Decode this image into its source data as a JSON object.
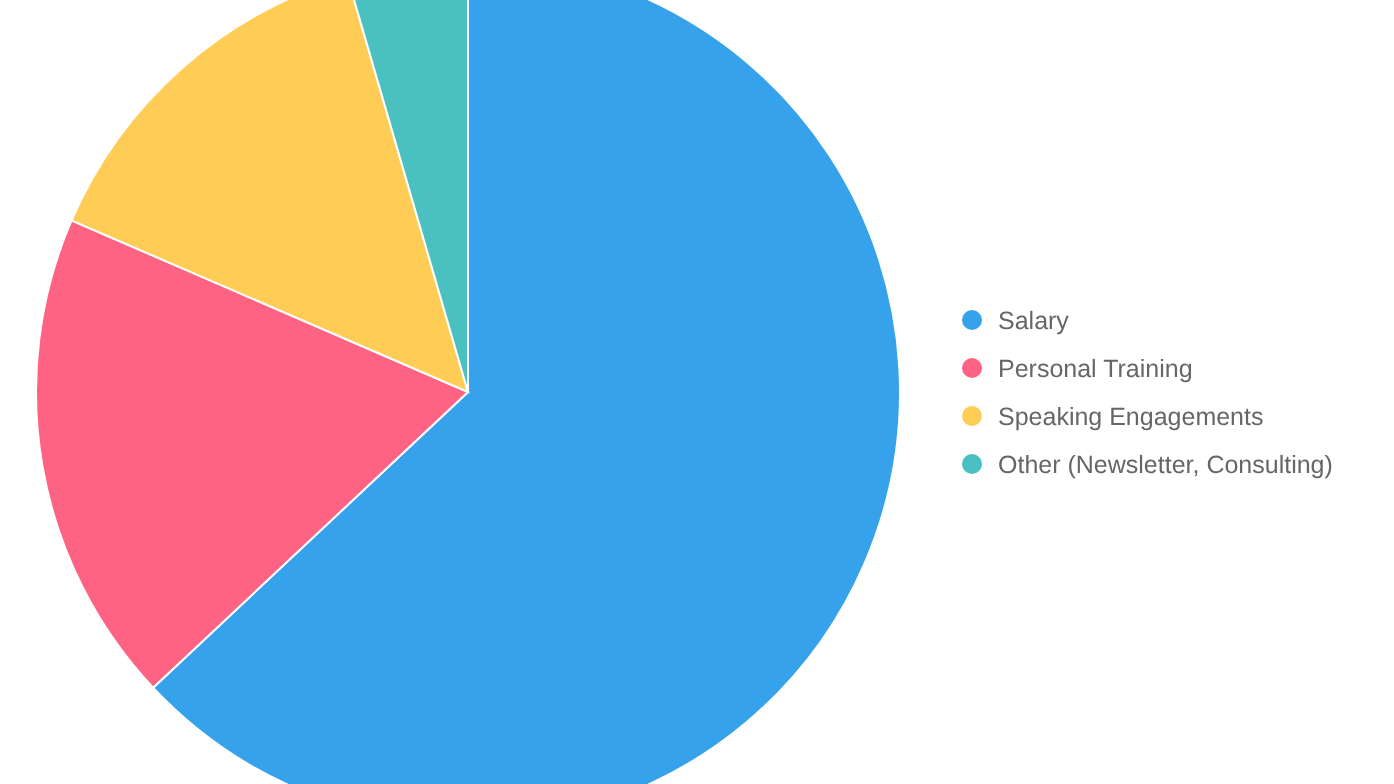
{
  "chart_data": {
    "type": "pie",
    "categories": [
      "Salary",
      "Personal Training",
      "Speaking Engagements",
      "Other (Newsletter, Consulting)"
    ],
    "values": [
      63,
      18.5,
      14,
      4.5
    ],
    "colors": [
      "#36a2eb",
      "#ff6384",
      "#ffcd56",
      "#4bc0c0"
    ],
    "legend": "right"
  }
}
